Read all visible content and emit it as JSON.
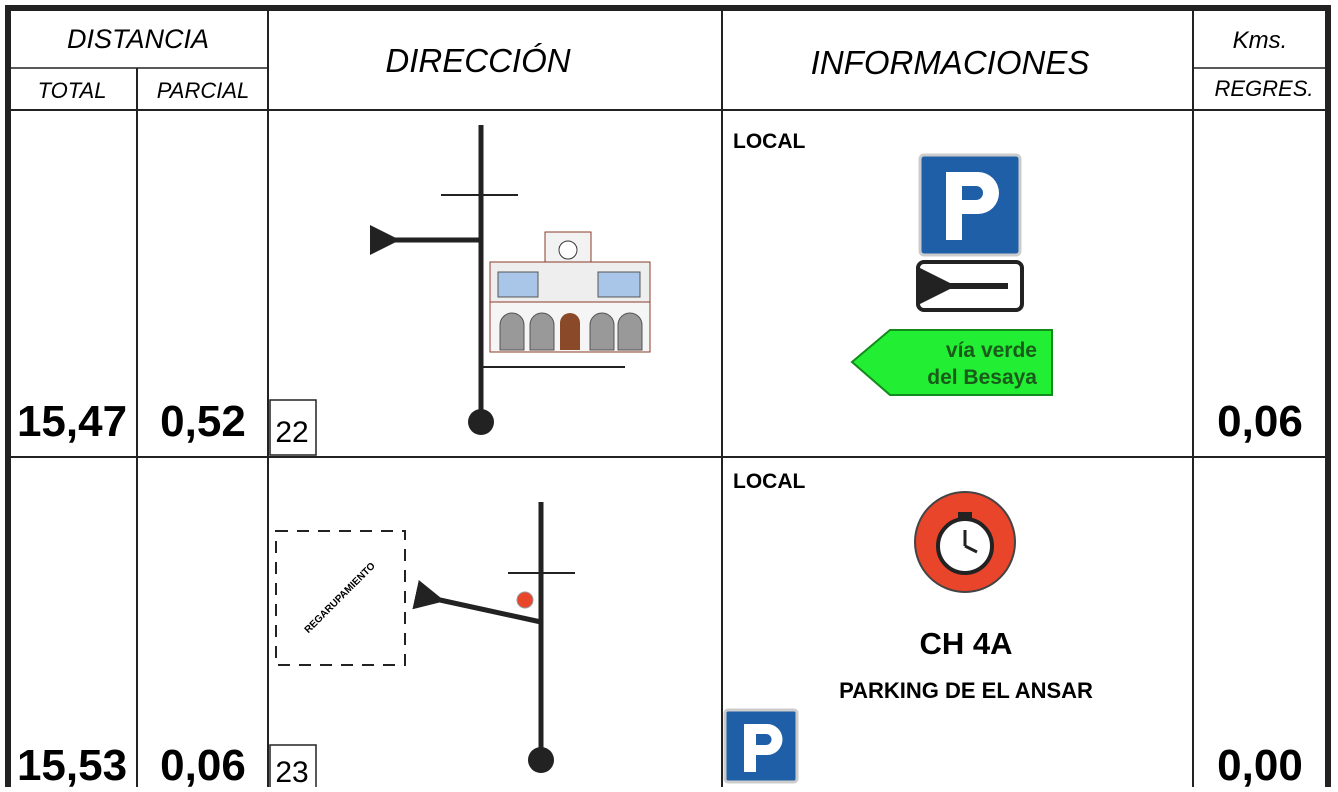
{
  "header": {
    "distancia": "DISTANCIA",
    "total": "TOTAL",
    "parcial": "PARCIAL",
    "direccion": "DIRECCIÓN",
    "informaciones": "INFORMACIONES",
    "kms": "Kms.",
    "regres": "REGRES."
  },
  "rows": [
    {
      "total": "15,47",
      "parcial": "0,52",
      "number": "22",
      "info_label": "LOCAL",
      "sign_lines": [
        "vía verde",
        "del Besaya"
      ],
      "kms": "0,06"
    },
    {
      "total": "15,53",
      "parcial": "0,06",
      "number": "23",
      "info_label": "LOCAL",
      "regroup": "REGARUPAMIENTO",
      "control": "CH 4A",
      "parking": "PARKING DE EL ANSAR",
      "kms": "0,00"
    }
  ]
}
